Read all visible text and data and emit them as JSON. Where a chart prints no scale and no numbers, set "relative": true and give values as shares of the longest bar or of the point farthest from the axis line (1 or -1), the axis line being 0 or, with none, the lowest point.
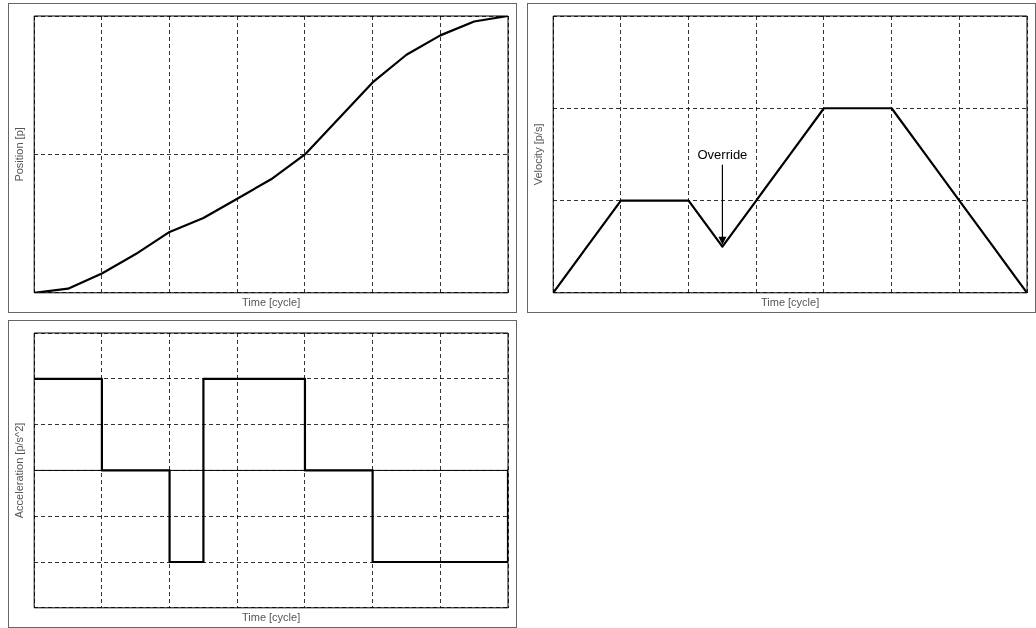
{
  "chart_data": [
    {
      "type": "line",
      "xlabel": "Time [cycle]",
      "ylabel": "Position [p]",
      "relative": true,
      "categories": [
        null,
        null,
        null,
        null,
        null,
        null,
        null,
        null,
        null,
        null,
        null,
        null,
        null,
        null,
        null
      ],
      "series": [
        {
          "color": "#000000",
          "values": [
            0,
            0.015,
            0.07,
            0.14,
            0.22,
            0.27,
            0.34,
            0.41,
            0.5,
            0.63,
            0.76,
            0.86,
            0.93,
            0.98,
            1
          ]
        }
      ],
      "grid": true,
      "tick_labels": false,
      "marker": "none",
      "line_style": "solid"
    },
    {
      "type": "line",
      "xlabel": "Time [cycle]",
      "ylabel": "Velocity [p/s]",
      "relative": true,
      "categories": [
        null,
        null,
        null,
        null,
        null,
        null,
        null,
        null,
        null,
        null,
        null,
        null,
        null,
        null,
        null
      ],
      "series": [
        {
          "color": "#000000",
          "values": [
            0,
            0.25,
            0.5,
            0.5,
            0.5,
            0.25,
            0.5,
            0.75,
            1,
            1,
            1,
            0.75,
            0.5,
            0.25,
            0
          ]
        }
      ],
      "annotations": [
        "Override"
      ],
      "grid": true,
      "tick_labels": false,
      "marker": "none",
      "line_style": "solid"
    },
    {
      "type": "step",
      "xlabel": "Time [cycle]",
      "ylabel": "Acceleration [p/s^2]",
      "relative": true,
      "categories": [
        null,
        null,
        null,
        null,
        null,
        null,
        null,
        null,
        null,
        null,
        null,
        null,
        null,
        null,
        null
      ],
      "series": [
        {
          "color": "#000000",
          "values": [
            1,
            1,
            0,
            0,
            -1,
            1,
            1,
            1,
            0,
            0,
            -1,
            -1,
            -1,
            -1,
            0
          ]
        }
      ],
      "grid": true,
      "tick_labels": false,
      "marker": "none",
      "line_style": "solid"
    }
  ]
}
